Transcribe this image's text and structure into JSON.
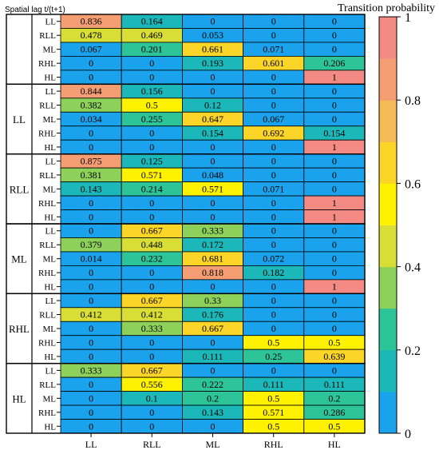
{
  "chart_data": {
    "type": "heatmap",
    "corner_label": "Spatial lag  t/(t+1)",
    "colorbar_title": "Transition probability",
    "colorbar_range": [
      0,
      1
    ],
    "colorbar_ticks": [
      "0",
      "0.2",
      "0.4",
      "0.6",
      "0.8",
      "1"
    ],
    "columns": [
      "LL",
      "RLL",
      "ML",
      "RHL",
      "HL"
    ],
    "groups": [
      {
        "label": "",
        "rows": [
          "LL",
          "RLL",
          "ML",
          "RHL",
          "HL"
        ],
        "values": [
          [
            0.836,
            0.164,
            0,
            0,
            0
          ],
          [
            0.478,
            0.469,
            0.053,
            0,
            0
          ],
          [
            0.067,
            0.201,
            0.661,
            0.071,
            0
          ],
          [
            0,
            0,
            0.193,
            0.601,
            0.206
          ],
          [
            0,
            0,
            0,
            0,
            1
          ]
        ]
      },
      {
        "label": "LL",
        "rows": [
          "LL",
          "RLL",
          "ML",
          "RHL",
          "HL"
        ],
        "values": [
          [
            0.844,
            0.156,
            0,
            0,
            0
          ],
          [
            0.382,
            0.5,
            0.12,
            0,
            0
          ],
          [
            0.034,
            0.255,
            0.647,
            0.067,
            0
          ],
          [
            0,
            0,
            0.154,
            0.692,
            0.154
          ],
          [
            0,
            0,
            0,
            0,
            1
          ]
        ]
      },
      {
        "label": "RLL",
        "rows": [
          "LL",
          "RLL",
          "ML",
          "RHL",
          "HL"
        ],
        "values": [
          [
            0.875,
            0.125,
            0,
            0,
            0
          ],
          [
            0.381,
            0.571,
            0.048,
            0,
            0
          ],
          [
            0.143,
            0.214,
            0.571,
            0.071,
            0
          ],
          [
            0,
            0,
            0,
            0,
            1
          ],
          [
            0,
            0,
            0,
            0,
            1
          ]
        ]
      },
      {
        "label": "ML",
        "rows": [
          "LL",
          "RLL",
          "ML",
          "RHL",
          "HL"
        ],
        "values": [
          [
            0,
            0.667,
            0.333,
            0,
            0
          ],
          [
            0.379,
            0.448,
            0.172,
            0,
            0
          ],
          [
            0.014,
            0.232,
            0.681,
            0.072,
            0
          ],
          [
            0,
            0,
            0.818,
            0.182,
            0
          ],
          [
            0,
            0,
            0,
            0,
            1
          ]
        ]
      },
      {
        "label": "RHL",
        "rows": [
          "LL",
          "RLL",
          "ML",
          "RHL",
          "HL"
        ],
        "values": [
          [
            0,
            0.667,
            0.33,
            0,
            0
          ],
          [
            0.412,
            0.412,
            0.176,
            0,
            0
          ],
          [
            0,
            0.333,
            0.667,
            0,
            0
          ],
          [
            0,
            0,
            0,
            0.5,
            0.5
          ],
          [
            0,
            0,
            0.111,
            0.25,
            0.639
          ]
        ]
      },
      {
        "label": "HL",
        "rows": [
          "LL",
          "RLL",
          "ML",
          "RHL",
          "HL"
        ],
        "values": [
          [
            0.333,
            0.667,
            0,
            0,
            0
          ],
          [
            0,
            0.556,
            0.222,
            0.111,
            0.111
          ],
          [
            0,
            0.1,
            0.2,
            0.5,
            0.2
          ],
          [
            0,
            0,
            0.143,
            0.571,
            0.286
          ],
          [
            0,
            0,
            0,
            0.5,
            0.5
          ]
        ]
      }
    ],
    "color_stops": [
      "#1aa3ec",
      "#1bb7b9",
      "#2ec49a",
      "#8dd15a",
      "#d8de36",
      "#fff200",
      "#fbd528",
      "#f6ba56",
      "#f69e73",
      "#f48a84"
    ]
  }
}
